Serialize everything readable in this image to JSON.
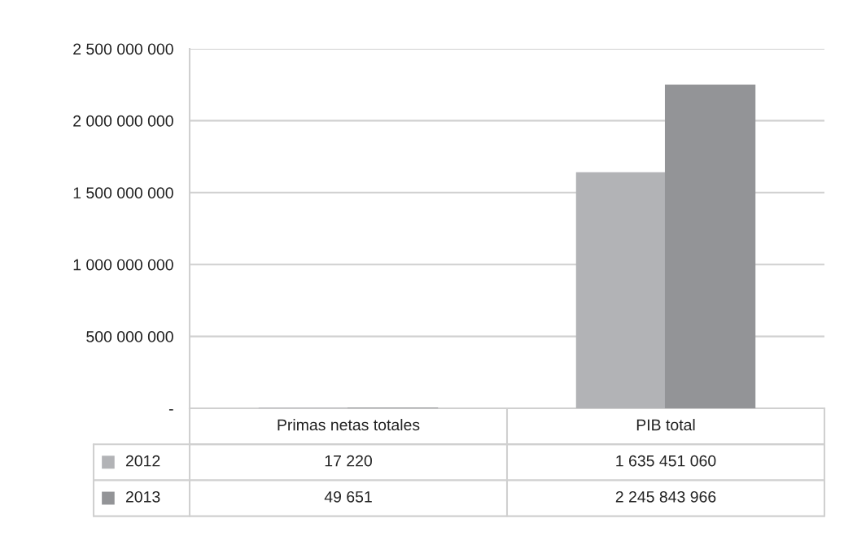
{
  "chart_data": {
    "type": "bar",
    "categories": [
      "Primas netas totales",
      "PIB total"
    ],
    "series": [
      {
        "name": "2012",
        "color": "#b2b3b6",
        "values": [
          17220,
          1635451060
        ],
        "value_labels": [
          "17 220",
          "1 635 451 060"
        ]
      },
      {
        "name": "2013",
        "color": "#939497",
        "values": [
          49651,
          2245843966
        ],
        "value_labels": [
          "49 651",
          "2 245 843 966"
        ]
      }
    ],
    "ylim": [
      0,
      2500000000
    ],
    "yticks": [
      {
        "value": 0,
        "label": "-"
      },
      {
        "value": 500000000,
        "label": "500 000 000"
      },
      {
        "value": 1000000000,
        "label": "1 000 000 000"
      },
      {
        "value": 1500000000,
        "label": "1 500 000 000"
      },
      {
        "value": 2000000000,
        "label": "2 000 000 000"
      },
      {
        "value": 2500000000,
        "label": "2 500 000 000"
      }
    ],
    "grid": "y",
    "legend": "bottom"
  }
}
